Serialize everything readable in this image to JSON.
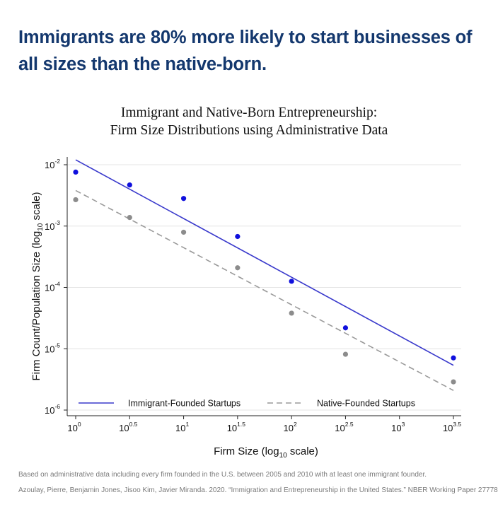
{
  "headline": "Immigrants are 80% more likely to start businesses of all sizes than the native-born.",
  "chart_data": {
    "type": "scatter",
    "title": [
      "Immigrant and Native-Born Entrepreneurship:",
      "Firm Size Distributions using Administrative Data"
    ],
    "xlabel": "Firm Size (log10 scale)",
    "ylabel": "Firm Count/Population Size (log10 scale)",
    "x_scale": "log10",
    "y_scale": "log10",
    "xlim_log10": [
      0,
      3.5
    ],
    "ylim_log10": [
      -6,
      -2
    ],
    "x_ticks": [
      {
        "base": "10",
        "exp": "0"
      },
      {
        "base": "10",
        "exp": "0.5"
      },
      {
        "base": "10",
        "exp": "1"
      },
      {
        "base": "10",
        "exp": "1.5"
      },
      {
        "base": "10",
        "exp": "2"
      },
      {
        "base": "10",
        "exp": "2.5"
      },
      {
        "base": "10",
        "exp": "3"
      },
      {
        "base": "10",
        "exp": "3.5"
      }
    ],
    "y_ticks": [
      {
        "base": "10",
        "exp": "-2"
      },
      {
        "base": "10",
        "exp": "-3"
      },
      {
        "base": "10",
        "exp": "-4"
      },
      {
        "base": "10",
        "exp": "-5"
      },
      {
        "base": "10",
        "exp": "-6"
      }
    ],
    "grid": "horizontal",
    "legend_position": "bottom",
    "series": [
      {
        "name": "Immigrant-Founded Startups",
        "color": "#3a3acc",
        "point_color": "#1010dd",
        "line_style": "solid",
        "points_log10": [
          [
            0,
            -2.12
          ],
          [
            0.5,
            -2.33
          ],
          [
            1,
            -2.55
          ],
          [
            1.5,
            -3.17
          ],
          [
            2,
            -3.9
          ],
          [
            2.5,
            -4.66
          ],
          [
            3.5,
            -5.15
          ]
        ],
        "fit_log10": [
          [
            0,
            -1.92
          ],
          [
            3.5,
            -5.27
          ]
        ]
      },
      {
        "name": "Native-Founded Startups",
        "color": "#9a9a9a",
        "point_color": "#8c8c8c",
        "line_style": "dashed",
        "points_log10": [
          [
            0,
            -2.57
          ],
          [
            0.5,
            -2.86
          ],
          [
            1,
            -3.1
          ],
          [
            1.5,
            -3.68
          ],
          [
            2,
            -4.42
          ],
          [
            2.5,
            -5.09
          ],
          [
            3.5,
            -5.54
          ]
        ],
        "fit_log10": [
          [
            0,
            -2.42
          ],
          [
            3.5,
            -5.68
          ]
        ]
      }
    ]
  },
  "footnotes": [
    "Based on administrative data including every firm founded in the U.S. between 2005 and 2010 with at least one immigrant founder.",
    "Azoulay, Pierre, Benjamin Jones, Jisoo Kim, Javier Miranda. 2020. “Immigration and Entrepreneurship in the United States.” NBER Working Paper 27778."
  ]
}
